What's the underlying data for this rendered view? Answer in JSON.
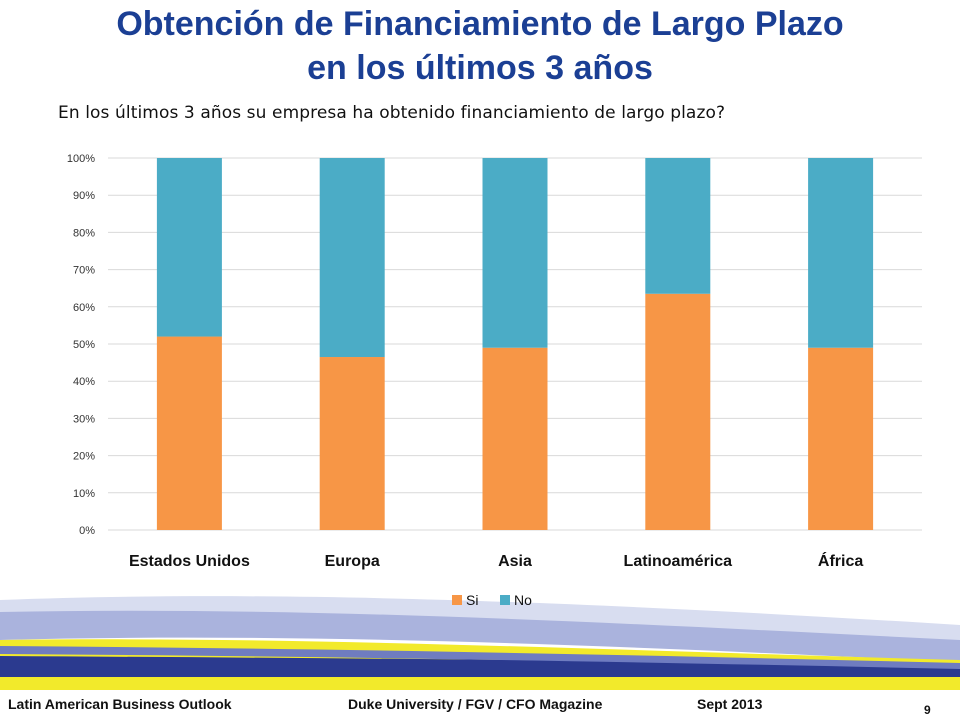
{
  "slide": {
    "title_line1": "Obtención de Financiamiento de Largo Plazo",
    "title_line2": "en los últimos 3 años",
    "subtitle": "En los últimos 3 años su empresa ha obtenido financiamiento de largo plazo?",
    "page_number": "9"
  },
  "footer": {
    "left": "Latin American Business Outlook",
    "center": "Duke University / FGV / CFO Magazine",
    "right": "Sept 2013"
  },
  "chart_data": {
    "type": "bar",
    "stacked": true,
    "categories": [
      "Estados Unidos",
      "Europa",
      "Asia",
      "Latinoamérica",
      "África"
    ],
    "series": [
      {
        "name": "Si",
        "values": [
          52,
          46.5,
          49,
          63.5,
          49
        ],
        "color": "#f79646"
      },
      {
        "name": "No",
        "values": [
          48,
          53.5,
          51,
          36.5,
          51
        ],
        "color": "#4bacc6"
      }
    ],
    "y_ticks": [
      "0%",
      "10%",
      "20%",
      "30%",
      "40%",
      "50%",
      "60%",
      "70%",
      "80%",
      "90%",
      "100%"
    ],
    "ylim": [
      0,
      100
    ],
    "grid": true,
    "legend_position": "bottom"
  },
  "colors": {
    "title": "#1b3f94",
    "grid": "#d9d9d9",
    "band_yellow": "#f2ea2b",
    "band_navy": "#2b3a8f",
    "band_light": "#aab3dd"
  }
}
